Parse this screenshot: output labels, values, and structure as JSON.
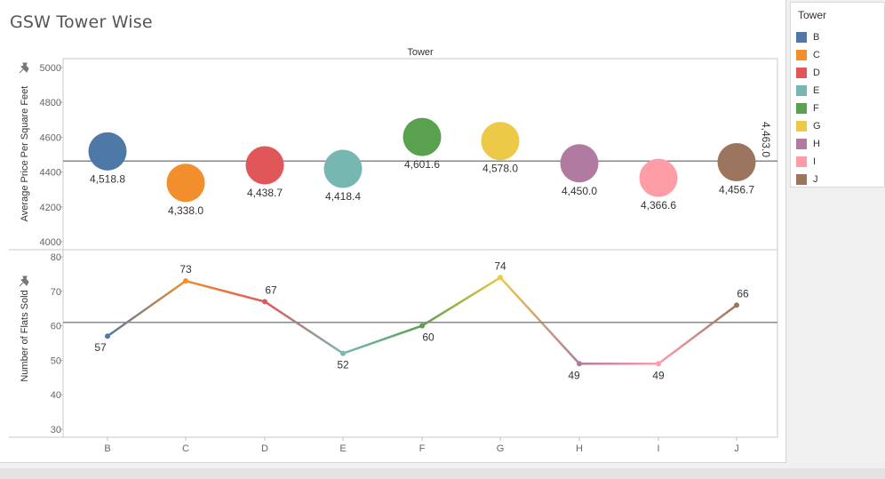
{
  "title": "GSW Tower Wise",
  "legend": {
    "title": "Tower",
    "items": [
      {
        "label": "B",
        "color": "#4e79a7"
      },
      {
        "label": "C",
        "color": "#f28e2b"
      },
      {
        "label": "D",
        "color": "#e15759"
      },
      {
        "label": "E",
        "color": "#76b7b2"
      },
      {
        "label": "F",
        "color": "#59a14f"
      },
      {
        "label": "G",
        "color": "#edc948"
      },
      {
        "label": "H",
        "color": "#b07aa1"
      },
      {
        "label": "I",
        "color": "#ff9da7"
      },
      {
        "label": "J",
        "color": "#9c755f"
      }
    ]
  },
  "chart_data": [
    {
      "type": "scatter",
      "header": "Tower",
      "ylabel": "Average Price Per Square Feet",
      "ylim": [
        4000,
        5000
      ],
      "yticks": [
        4000,
        4200,
        4400,
        4600,
        4800,
        5000
      ],
      "categories": [
        "B",
        "C",
        "D",
        "E",
        "F",
        "G",
        "H",
        "I",
        "J"
      ],
      "values": [
        4518.8,
        4338.0,
        4438.7,
        4418.4,
        4601.6,
        4578.0,
        4450.0,
        4366.6,
        4456.7
      ],
      "value_labels": [
        "4,518.8",
        "4,338.0",
        "4,438.7",
        "4,418.4",
        "4,601.6",
        "4,578.0",
        "4,450.0",
        "4,366.6",
        "4,456.7"
      ],
      "reference_line": {
        "value": 4463.0,
        "label": "4,463.0"
      }
    },
    {
      "type": "line",
      "xlabel": "",
      "ylabel": "Number of Flats Sold",
      "ylim": [
        30,
        80
      ],
      "yticks": [
        30,
        40,
        50,
        60,
        70,
        80
      ],
      "categories": [
        "B",
        "C",
        "D",
        "E",
        "F",
        "G",
        "H",
        "I",
        "J"
      ],
      "values": [
        57,
        73,
        67,
        52,
        60,
        74,
        49,
        49,
        66
      ],
      "value_labels": [
        "57",
        "73",
        "67",
        "52",
        "60",
        "74",
        "49",
        "49",
        "66"
      ],
      "reference_line": {
        "value": 61
      }
    }
  ]
}
